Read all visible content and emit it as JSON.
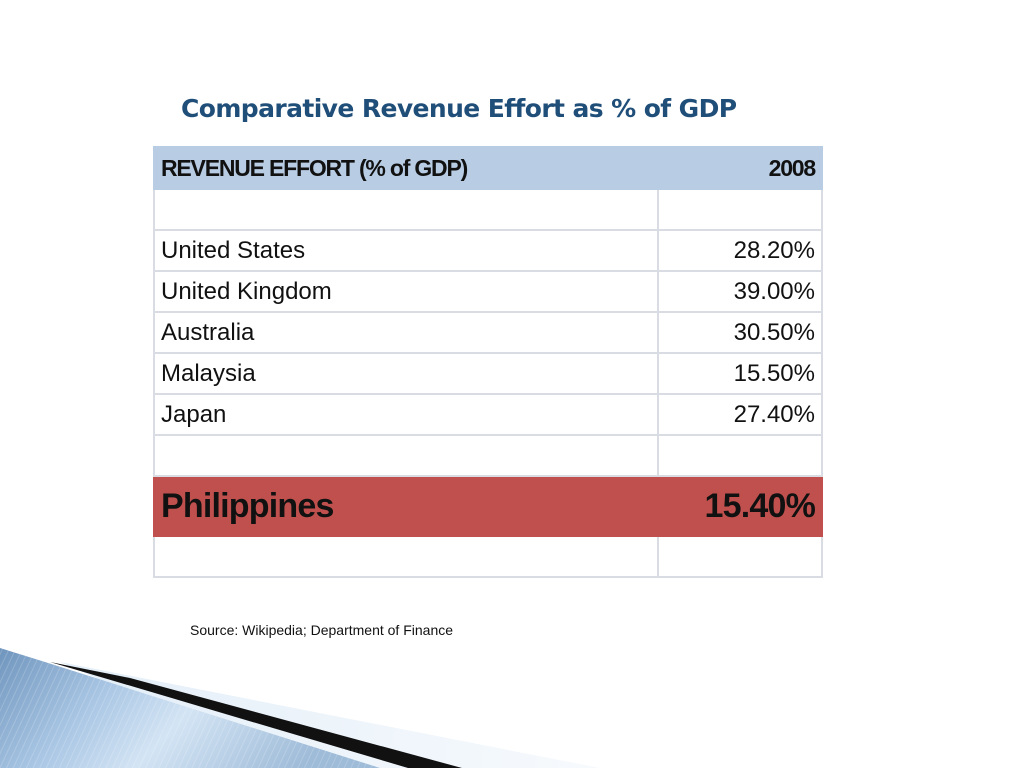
{
  "title": "Comparative Revenue Effort as % of GDP",
  "table": {
    "header": {
      "label": "REVENUE EFFORT (% of GDP)",
      "year": "2008"
    },
    "rows": [
      {
        "country": "",
        "value": ""
      },
      {
        "country": "United States",
        "value": "28.20%"
      },
      {
        "country": "United Kingdom",
        "value": "39.00%"
      },
      {
        "country": "Australia",
        "value": "30.50%"
      },
      {
        "country": "Malaysia",
        "value": "15.50%"
      },
      {
        "country": "Japan",
        "value": "27.40%"
      },
      {
        "country": "",
        "value": ""
      }
    ],
    "highlight": {
      "country": "Philippines",
      "value": "15.40%"
    },
    "footer_row": {
      "country": "",
      "value": ""
    }
  },
  "source": "Source: Wikipedia; Department of Finance",
  "colors": {
    "title": "#1f4e79",
    "header_bg": "#b8cce4",
    "highlight_bg": "#c0504d",
    "grid": "#d9dde3"
  }
}
